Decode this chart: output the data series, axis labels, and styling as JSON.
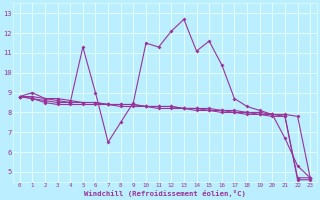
{
  "xlabel": "Windchill (Refroidissement éolien,°C)",
  "x": [
    0,
    1,
    2,
    3,
    4,
    5,
    6,
    7,
    8,
    9,
    10,
    11,
    12,
    13,
    14,
    15,
    16,
    17,
    18,
    19,
    20,
    21,
    22,
    23
  ],
  "line1": [
    8.8,
    9.0,
    8.7,
    8.6,
    8.5,
    11.3,
    9.0,
    6.5,
    7.5,
    8.5,
    11.5,
    11.3,
    12.1,
    12.7,
    11.1,
    11.6,
    10.4,
    8.7,
    8.3,
    8.1,
    7.9,
    6.7,
    5.3,
    4.7
  ],
  "line2": [
    8.8,
    8.8,
    8.7,
    8.7,
    8.6,
    8.5,
    8.5,
    8.4,
    8.4,
    8.4,
    8.3,
    8.3,
    8.3,
    8.2,
    8.2,
    8.2,
    8.1,
    8.1,
    8.0,
    8.0,
    7.9,
    7.9,
    7.8,
    4.7
  ],
  "line3": [
    8.8,
    8.7,
    8.6,
    8.5,
    8.5,
    8.5,
    8.5,
    8.4,
    8.4,
    8.4,
    8.3,
    8.3,
    8.3,
    8.2,
    8.2,
    8.1,
    8.1,
    8.0,
    8.0,
    7.9,
    7.9,
    7.8,
    4.7,
    4.7
  ],
  "line4": [
    8.8,
    8.7,
    8.5,
    8.4,
    8.4,
    8.4,
    8.4,
    8.4,
    8.3,
    8.3,
    8.3,
    8.2,
    8.2,
    8.2,
    8.1,
    8.1,
    8.0,
    8.0,
    7.9,
    7.9,
    7.8,
    7.8,
    4.6,
    4.6
  ],
  "bg_color": "#bbeeff",
  "grid_color": "#ddffff",
  "line_color": "#993399",
  "ylim": [
    4.5,
    13.5
  ],
  "xlim": [
    -0.5,
    23.5
  ],
  "yticks": [
    5,
    6,
    7,
    8,
    9,
    10,
    11,
    12,
    13
  ],
  "xticks": [
    0,
    1,
    2,
    3,
    4,
    5,
    6,
    7,
    8,
    9,
    10,
    11,
    12,
    13,
    14,
    15,
    16,
    17,
    18,
    19,
    20,
    21,
    22,
    23
  ]
}
